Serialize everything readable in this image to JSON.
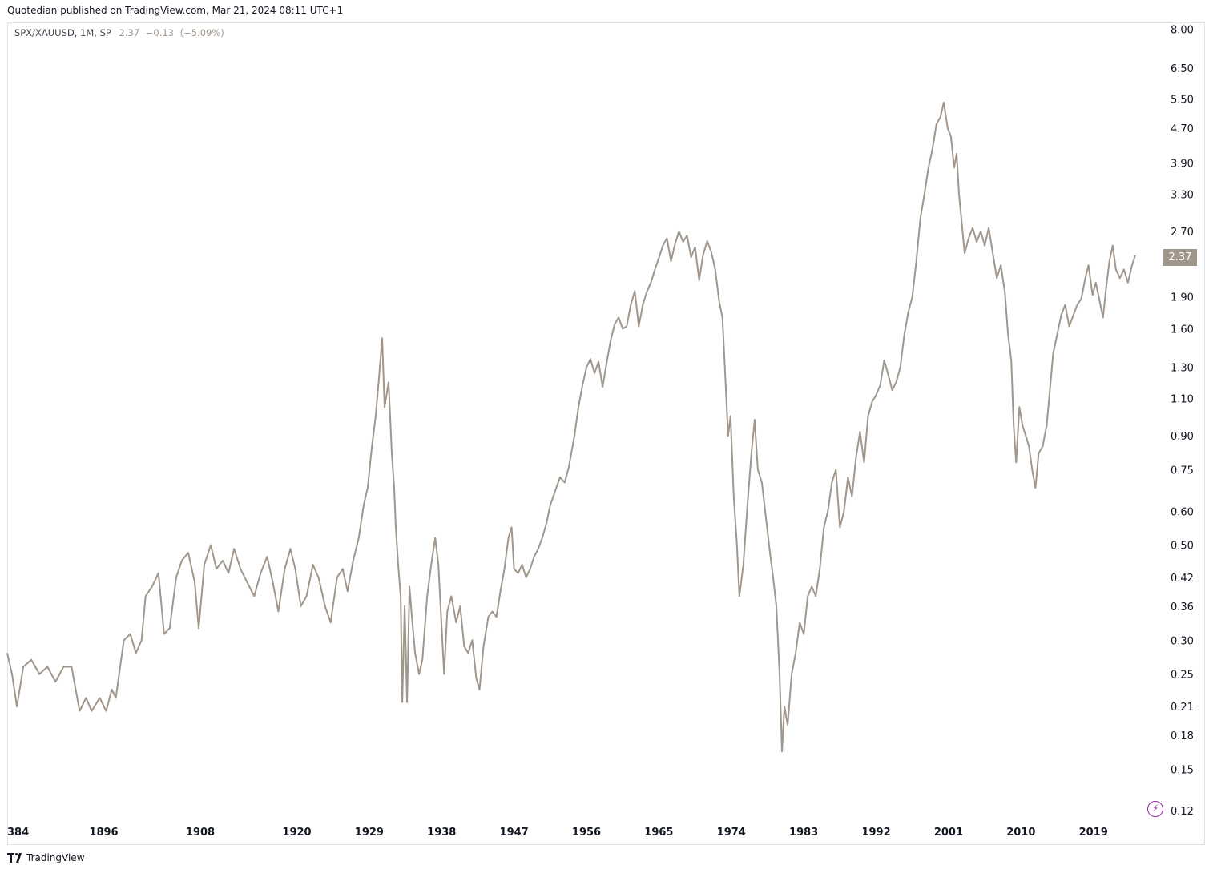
{
  "header": {
    "attribution": "Quotedian published on TradingView.com, Mar 21, 2024 08:11 UTC+1"
  },
  "legend": {
    "symbol": "SPX/XAUUSD, 1M, SP",
    "last": "2.37",
    "change": "−0.13",
    "change_pct": "(−5.09%)"
  },
  "price_tag": "2.37",
  "footer": {
    "brand": "TradingView"
  },
  "colors": {
    "line": "#a1968b",
    "bolt": "#9c27b0"
  },
  "icons": {
    "flash": "lightning-icon",
    "logo": "tradingview-logo-icon"
  },
  "chart_data": {
    "type": "line",
    "yscale": "log",
    "ylim": [
      0.115,
      8.3
    ],
    "xlim": [
      1884.0,
      2027.0
    ],
    "y_ticks": [
      "8.00",
      "6.50",
      "5.50",
      "4.70",
      "3.90",
      "3.30",
      "2.70",
      "2.37",
      "1.90",
      "1.60",
      "1.30",
      "1.10",
      "0.90",
      "0.75",
      "0.60",
      "0.50",
      "0.42",
      "0.36",
      "0.30",
      "0.25",
      "0.21",
      "0.18",
      "0.15",
      "0.12"
    ],
    "x_ticks": [
      "384",
      "1896",
      "1908",
      "1920",
      "1929",
      "1938",
      "1947",
      "1956",
      "1965",
      "1974",
      "1983",
      "1992",
      "2001",
      "2010",
      "2019"
    ],
    "series": [
      {
        "values": [
          [
            1884.0,
            0.28
          ],
          [
            1884.6,
            0.25
          ],
          [
            1885.2,
            0.21
          ],
          [
            1886.0,
            0.26
          ],
          [
            1887.0,
            0.27
          ],
          [
            1888.0,
            0.25
          ],
          [
            1889.0,
            0.26
          ],
          [
            1890.0,
            0.24
          ],
          [
            1891.0,
            0.26
          ],
          [
            1892.0,
            0.26
          ],
          [
            1893.0,
            0.205
          ],
          [
            1893.8,
            0.22
          ],
          [
            1894.5,
            0.205
          ],
          [
            1895.5,
            0.22
          ],
          [
            1896.3,
            0.205
          ],
          [
            1897.0,
            0.23
          ],
          [
            1897.5,
            0.22
          ],
          [
            1898.5,
            0.3
          ],
          [
            1899.3,
            0.31
          ],
          [
            1900.0,
            0.28
          ],
          [
            1900.7,
            0.3
          ],
          [
            1901.2,
            0.38
          ],
          [
            1902.0,
            0.4
          ],
          [
            1902.8,
            0.43
          ],
          [
            1903.5,
            0.31
          ],
          [
            1904.2,
            0.32
          ],
          [
            1905.0,
            0.42
          ],
          [
            1905.7,
            0.46
          ],
          [
            1906.5,
            0.48
          ],
          [
            1907.3,
            0.41
          ],
          [
            1907.8,
            0.32
          ],
          [
            1908.5,
            0.45
          ],
          [
            1909.3,
            0.5
          ],
          [
            1910.0,
            0.44
          ],
          [
            1910.8,
            0.46
          ],
          [
            1911.5,
            0.43
          ],
          [
            1912.2,
            0.49
          ],
          [
            1913.0,
            0.44
          ],
          [
            1913.8,
            0.41
          ],
          [
            1914.7,
            0.38
          ],
          [
            1915.5,
            0.43
          ],
          [
            1916.3,
            0.47
          ],
          [
            1917.0,
            0.41
          ],
          [
            1917.7,
            0.35
          ],
          [
            1918.5,
            0.44
          ],
          [
            1919.2,
            0.49
          ],
          [
            1919.8,
            0.44
          ],
          [
            1920.5,
            0.36
          ],
          [
            1921.2,
            0.38
          ],
          [
            1922.0,
            0.45
          ],
          [
            1922.7,
            0.42
          ],
          [
            1923.5,
            0.36
          ],
          [
            1924.2,
            0.33
          ],
          [
            1925.0,
            0.42
          ],
          [
            1925.7,
            0.44
          ],
          [
            1926.3,
            0.39
          ],
          [
            1927.0,
            0.46
          ],
          [
            1927.7,
            0.52
          ],
          [
            1928.3,
            0.62
          ],
          [
            1928.8,
            0.68
          ],
          [
            1929.3,
            0.84
          ],
          [
            1929.8,
            1.0
          ],
          [
            1930.2,
            1.22
          ],
          [
            1930.6,
            1.52
          ],
          [
            1930.9,
            1.05
          ],
          [
            1931.4,
            1.2
          ],
          [
            1931.8,
            0.82
          ],
          [
            1932.1,
            0.68
          ],
          [
            1932.3,
            0.55
          ],
          [
            1932.6,
            0.45
          ],
          [
            1932.9,
            0.38
          ],
          [
            1933.1,
            0.215
          ],
          [
            1933.4,
            0.36
          ],
          [
            1933.7,
            0.215
          ],
          [
            1934.0,
            0.4
          ],
          [
            1934.3,
            0.34
          ],
          [
            1934.7,
            0.28
          ],
          [
            1935.2,
            0.25
          ],
          [
            1935.6,
            0.27
          ],
          [
            1936.2,
            0.38
          ],
          [
            1936.7,
            0.45
          ],
          [
            1937.2,
            0.52
          ],
          [
            1937.6,
            0.45
          ],
          [
            1938.0,
            0.32
          ],
          [
            1938.3,
            0.25
          ],
          [
            1938.7,
            0.35
          ],
          [
            1939.2,
            0.38
          ],
          [
            1939.8,
            0.33
          ],
          [
            1940.3,
            0.36
          ],
          [
            1940.8,
            0.29
          ],
          [
            1941.3,
            0.28
          ],
          [
            1941.8,
            0.3
          ],
          [
            1942.3,
            0.245
          ],
          [
            1942.7,
            0.23
          ],
          [
            1943.2,
            0.29
          ],
          [
            1943.8,
            0.34
          ],
          [
            1944.3,
            0.35
          ],
          [
            1944.8,
            0.34
          ],
          [
            1945.3,
            0.39
          ],
          [
            1945.8,
            0.44
          ],
          [
            1946.3,
            0.52
          ],
          [
            1946.7,
            0.55
          ],
          [
            1947.0,
            0.44
          ],
          [
            1947.5,
            0.43
          ],
          [
            1948.0,
            0.45
          ],
          [
            1948.5,
            0.42
          ],
          [
            1949.0,
            0.44
          ],
          [
            1949.5,
            0.47
          ],
          [
            1950.0,
            0.49
          ],
          [
            1950.5,
            0.52
          ],
          [
            1951.0,
            0.56
          ],
          [
            1951.5,
            0.62
          ],
          [
            1952.0,
            0.66
          ],
          [
            1952.7,
            0.72
          ],
          [
            1953.3,
            0.7
          ],
          [
            1953.8,
            0.76
          ],
          [
            1954.5,
            0.9
          ],
          [
            1955.0,
            1.05
          ],
          [
            1955.5,
            1.18
          ],
          [
            1956.0,
            1.3
          ],
          [
            1956.5,
            1.36
          ],
          [
            1957.0,
            1.26
          ],
          [
            1957.5,
            1.34
          ],
          [
            1958.0,
            1.17
          ],
          [
            1958.5,
            1.33
          ],
          [
            1959.0,
            1.5
          ],
          [
            1959.5,
            1.64
          ],
          [
            1960.0,
            1.7
          ],
          [
            1960.5,
            1.6
          ],
          [
            1961.0,
            1.62
          ],
          [
            1961.5,
            1.82
          ],
          [
            1962.0,
            1.96
          ],
          [
            1962.5,
            1.62
          ],
          [
            1963.0,
            1.82
          ],
          [
            1963.5,
            1.95
          ],
          [
            1964.0,
            2.05
          ],
          [
            1964.5,
            2.2
          ],
          [
            1965.0,
            2.34
          ],
          [
            1965.5,
            2.5
          ],
          [
            1966.0,
            2.6
          ],
          [
            1966.5,
            2.3
          ],
          [
            1967.0,
            2.52
          ],
          [
            1967.5,
            2.7
          ],
          [
            1968.0,
            2.55
          ],
          [
            1968.5,
            2.64
          ],
          [
            1969.0,
            2.35
          ],
          [
            1969.5,
            2.48
          ],
          [
            1970.0,
            2.08
          ],
          [
            1970.5,
            2.38
          ],
          [
            1971.0,
            2.56
          ],
          [
            1971.5,
            2.42
          ],
          [
            1972.0,
            2.2
          ],
          [
            1972.5,
            1.85
          ],
          [
            1972.9,
            1.7
          ],
          [
            1973.2,
            1.3
          ],
          [
            1973.6,
            0.9
          ],
          [
            1973.9,
            1.0
          ],
          [
            1974.3,
            0.65
          ],
          [
            1974.7,
            0.5
          ],
          [
            1975.0,
            0.38
          ],
          [
            1975.5,
            0.45
          ],
          [
            1976.0,
            0.62
          ],
          [
            1976.5,
            0.82
          ],
          [
            1976.9,
            0.98
          ],
          [
            1977.3,
            0.75
          ],
          [
            1977.8,
            0.7
          ],
          [
            1978.3,
            0.58
          ],
          [
            1978.8,
            0.48
          ],
          [
            1979.2,
            0.42
          ],
          [
            1979.6,
            0.36
          ],
          [
            1980.0,
            0.25
          ],
          [
            1980.3,
            0.165
          ],
          [
            1980.6,
            0.21
          ],
          [
            1981.0,
            0.19
          ],
          [
            1981.5,
            0.25
          ],
          [
            1982.0,
            0.28
          ],
          [
            1982.5,
            0.33
          ],
          [
            1983.0,
            0.31
          ],
          [
            1983.5,
            0.38
          ],
          [
            1984.0,
            0.4
          ],
          [
            1984.5,
            0.38
          ],
          [
            1985.0,
            0.44
          ],
          [
            1985.5,
            0.55
          ],
          [
            1986.0,
            0.6
          ],
          [
            1986.5,
            0.7
          ],
          [
            1987.0,
            0.75
          ],
          [
            1987.5,
            0.55
          ],
          [
            1988.0,
            0.6
          ],
          [
            1988.5,
            0.72
          ],
          [
            1989.0,
            0.65
          ],
          [
            1989.5,
            0.8
          ],
          [
            1990.0,
            0.92
          ],
          [
            1990.5,
            0.78
          ],
          [
            1991.0,
            1.0
          ],
          [
            1991.5,
            1.08
          ],
          [
            1992.0,
            1.12
          ],
          [
            1992.5,
            1.18
          ],
          [
            1993.0,
            1.35
          ],
          [
            1993.5,
            1.25
          ],
          [
            1994.0,
            1.15
          ],
          [
            1994.5,
            1.2
          ],
          [
            1995.0,
            1.3
          ],
          [
            1995.5,
            1.55
          ],
          [
            1996.0,
            1.75
          ],
          [
            1996.5,
            1.9
          ],
          [
            1997.0,
            2.3
          ],
          [
            1997.5,
            2.9
          ],
          [
            1998.0,
            3.3
          ],
          [
            1998.5,
            3.8
          ],
          [
            1999.0,
            4.2
          ],
          [
            1999.5,
            4.8
          ],
          [
            2000.0,
            5.0
          ],
          [
            2000.4,
            5.4
          ],
          [
            2000.9,
            4.7
          ],
          [
            2001.3,
            4.5
          ],
          [
            2001.7,
            3.8
          ],
          [
            2002.0,
            4.1
          ],
          [
            2002.3,
            3.3
          ],
          [
            2002.7,
            2.75
          ],
          [
            2003.0,
            2.4
          ],
          [
            2003.5,
            2.6
          ],
          [
            2004.0,
            2.75
          ],
          [
            2004.5,
            2.55
          ],
          [
            2005.0,
            2.7
          ],
          [
            2005.5,
            2.5
          ],
          [
            2006.0,
            2.75
          ],
          [
            2006.5,
            2.4
          ],
          [
            2007.0,
            2.1
          ],
          [
            2007.5,
            2.25
          ],
          [
            2008.0,
            1.95
          ],
          [
            2008.4,
            1.55
          ],
          [
            2008.8,
            1.35
          ],
          [
            2009.1,
            0.95
          ],
          [
            2009.4,
            0.78
          ],
          [
            2009.8,
            1.05
          ],
          [
            2010.2,
            0.95
          ],
          [
            2010.6,
            0.9
          ],
          [
            2011.0,
            0.85
          ],
          [
            2011.4,
            0.75
          ],
          [
            2011.8,
            0.68
          ],
          [
            2012.2,
            0.82
          ],
          [
            2012.7,
            0.85
          ],
          [
            2013.2,
            0.95
          ],
          [
            2013.6,
            1.15
          ],
          [
            2014.0,
            1.4
          ],
          [
            2014.5,
            1.55
          ],
          [
            2015.0,
            1.72
          ],
          [
            2015.5,
            1.82
          ],
          [
            2016.0,
            1.62
          ],
          [
            2016.5,
            1.72
          ],
          [
            2017.0,
            1.82
          ],
          [
            2017.5,
            1.88
          ],
          [
            2018.0,
            2.1
          ],
          [
            2018.4,
            2.25
          ],
          [
            2018.9,
            1.92
          ],
          [
            2019.3,
            2.05
          ],
          [
            2019.8,
            1.85
          ],
          [
            2020.2,
            1.7
          ],
          [
            2020.6,
            2.0
          ],
          [
            2021.0,
            2.3
          ],
          [
            2021.4,
            2.5
          ],
          [
            2021.8,
            2.2
          ],
          [
            2022.3,
            2.1
          ],
          [
            2022.8,
            2.2
          ],
          [
            2023.3,
            2.05
          ],
          [
            2023.8,
            2.25
          ],
          [
            2024.2,
            2.37
          ]
        ]
      }
    ]
  }
}
